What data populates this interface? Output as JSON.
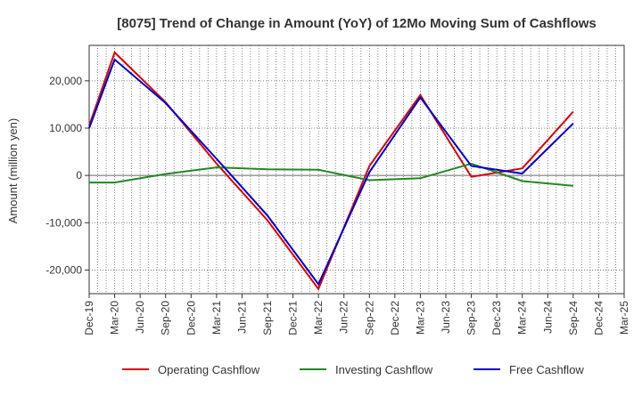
{
  "chart_data": {
    "type": "line",
    "title": "[8075]  Trend of Change in Amount (YoY) of 12Mo Moving Sum of Cashflows",
    "xlabel": "",
    "ylabel": "Amount (million yen)",
    "ylim": [
      -25000,
      27500
    ],
    "yticks": [
      -20000,
      -10000,
      0,
      10000,
      20000
    ],
    "ytick_labels": [
      "-20,000",
      "-10,000",
      "0",
      "10,000",
      "20,000"
    ],
    "categories": [
      "Dec-19",
      "Mar-20",
      "Jun-20",
      "Sep-20",
      "Dec-20",
      "Mar-21",
      "Jun-21",
      "Sep-21",
      "Dec-21",
      "Mar-22",
      "Jun-22",
      "Sep-22",
      "Dec-22",
      "Mar-23",
      "Jun-23",
      "Sep-23",
      "Dec-23",
      "Mar-24",
      "Jun-24",
      "Sep-24",
      "Dec-24",
      "Mar-25"
    ],
    "grid": true,
    "legend_position": "bottom",
    "series": [
      {
        "name": "Operating Cashflow",
        "color": "#dd0000",
        "values": [
          10500,
          26000,
          null,
          15500,
          null,
          2500,
          null,
          -9500,
          null,
          -24000,
          null,
          2000,
          null,
          17000,
          null,
          -300,
          null,
          1500,
          null,
          13500,
          null,
          null
        ]
      },
      {
        "name": "Investing Cashflow",
        "color": "#228822",
        "values": [
          -1500,
          -1500,
          null,
          300,
          null,
          1700,
          null,
          1300,
          null,
          1200,
          null,
          -1000,
          null,
          -600,
          null,
          2500,
          null,
          -1200,
          null,
          -2200,
          null,
          null
        ]
      },
      {
        "name": "Free Cashflow",
        "color": "#0000cc",
        "values": [
          10000,
          24500,
          null,
          15300,
          null,
          3500,
          null,
          -8500,
          null,
          -23000,
          null,
          700,
          null,
          16500,
          null,
          2000,
          null,
          400,
          null,
          11000,
          null,
          null
        ]
      }
    ]
  }
}
